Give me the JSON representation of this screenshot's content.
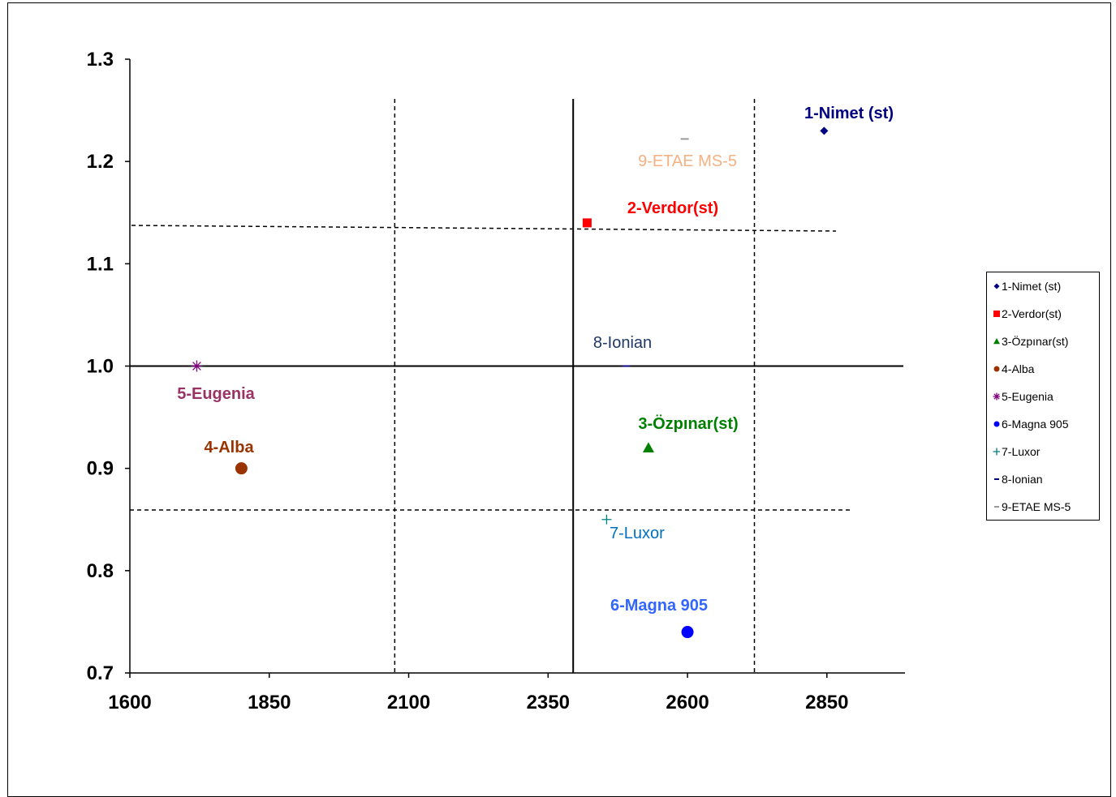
{
  "chart_data": {
    "type": "scatter",
    "title": "",
    "xlabel": "",
    "ylabel": "",
    "xlim": [
      1600,
      2990
    ],
    "ylim": [
      0.7,
      1.3
    ],
    "x_ticks": [
      "1600",
      "1850",
      "2100",
      "2350",
      "2600",
      "2850"
    ],
    "y_ticks": [
      "0.7",
      "0.8",
      "0.9",
      "1.0",
      "1.1",
      "1.2",
      "1.3"
    ],
    "grid": false,
    "legend_position": "right",
    "series": [
      {
        "name": "1-Nimet (st)",
        "label": "1-Nimet (st)",
        "x": 2845,
        "y": 1.23,
        "marker": "diamond",
        "color": "#000080"
      },
      {
        "name": "2-Verdor(st)",
        "label": "2-Verdor(st)",
        "x": 2420,
        "y": 1.14,
        "marker": "square",
        "color": "#ff0000"
      },
      {
        "name": "3-Özpınar(st)",
        "label": "3-Özpınar(st)",
        "x": 2530,
        "y": 0.92,
        "marker": "triangle",
        "color": "#008000"
      },
      {
        "name": "4-Alba",
        "label": "4-Alba",
        "x": 1800,
        "y": 0.9,
        "marker": "circle",
        "color": "#993300"
      },
      {
        "name": "5-Eugenia",
        "label": "5-Eugenia",
        "x": 1720,
        "y": 1.0,
        "marker": "asterisk",
        "color": "#800080"
      },
      {
        "name": "6-Magna 905",
        "label": "6-Magna 905",
        "x": 2600,
        "y": 0.74,
        "marker": "circle",
        "color": "#0000ff"
      },
      {
        "name": "7-Luxor",
        "label": "7-Luxor",
        "x": 2455,
        "y": 0.85,
        "marker": "plus",
        "color": "#008080"
      },
      {
        "name": "8-Ionian",
        "label": "8-Ionian",
        "x": 2490,
        "y": 1.0,
        "marker": "dash",
        "color": "#000080"
      },
      {
        "name": "9-ETAE MS-5",
        "label": "9-ETAE MS-5",
        "x": 2595,
        "y": 1.222,
        "marker": "dash",
        "color": "#999999"
      }
    ],
    "reference_lines": {
      "vertical_solid": 2395,
      "vertical_dashed": [
        2075,
        2720
      ],
      "horizontal_solid": 1.0,
      "horizontal_dashed": [
        1.135,
        0.859
      ]
    }
  },
  "colors": {
    "label_nimet": "#000080",
    "label_verdor": "#ff0000",
    "label_ozpinar": "#008000",
    "label_alba": "#993300",
    "label_eugenia": "#993366",
    "label_magna": "#3366ff",
    "label_luxor": "#0070c0",
    "label_ionian": "#1f3864",
    "label_etae": "#f4b183"
  }
}
